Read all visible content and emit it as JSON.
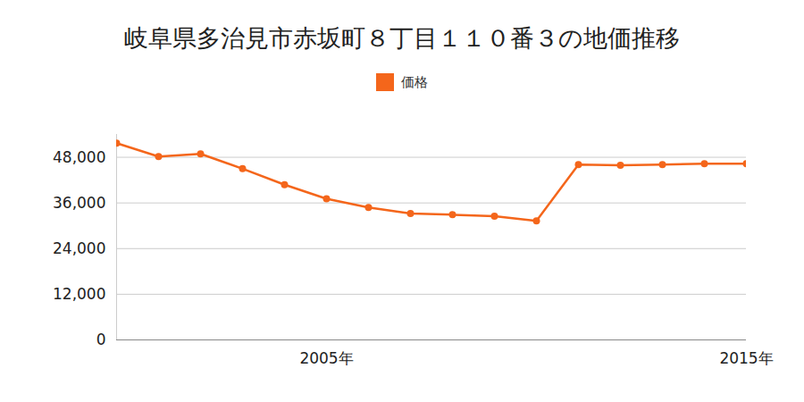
{
  "chart_data": {
    "type": "line",
    "title": "岐阜県多治見市赤坂町８丁目１１０番３の地価推移",
    "x": [
      2000,
      2001,
      2002,
      2003,
      2004,
      2005,
      2006,
      2007,
      2008,
      2009,
      2010,
      2011,
      2012,
      2013,
      2014,
      2015
    ],
    "series": [
      {
        "name": "価格",
        "color": "#f4661b",
        "marker": "circle",
        "values": [
          51700,
          48200,
          48900,
          45000,
          40800,
          37100,
          34800,
          33200,
          32900,
          32500,
          31300,
          46100,
          45900,
          46100,
          46300,
          46300
        ]
      }
    ],
    "xlim": [
      2000,
      2015
    ],
    "xticks": [
      {
        "value": 2005,
        "label": "2005年"
      },
      {
        "value": 2015,
        "label": "2015年"
      }
    ],
    "ylim": [
      0,
      54000
    ],
    "yticks": [
      0,
      {
        "value": 12000,
        "label": "12,000"
      },
      {
        "value": 24000,
        "label": "24,000"
      },
      {
        "value": 36000,
        "label": "36,000"
      },
      {
        "value": 48000,
        "label": "48,000"
      }
    ],
    "grid": true,
    "legend": "top"
  }
}
